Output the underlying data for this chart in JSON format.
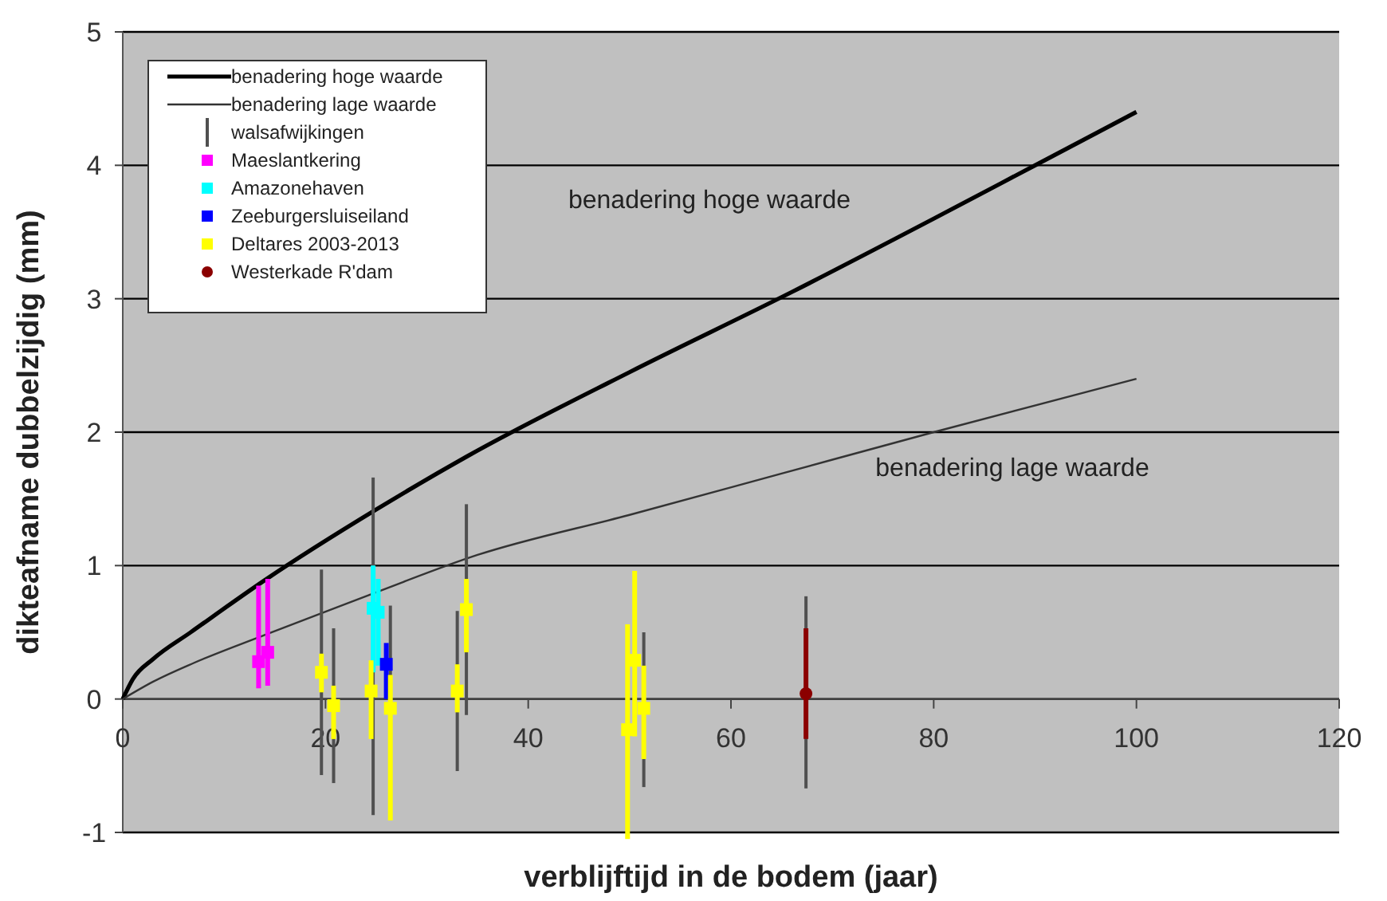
{
  "chart_data": {
    "type": "scatter",
    "xlabel": "verblijftijd in de bodem (jaar)",
    "ylabel": "dikteafname dubbelzijdig (mm)",
    "xlim": [
      0,
      120
    ],
    "xticks": [
      0,
      20,
      40,
      60,
      80,
      100,
      120
    ],
    "ylim": [
      -1,
      5
    ],
    "yticks": [
      -1,
      0,
      1,
      2,
      3,
      4,
      5
    ],
    "grid": "y",
    "legend": "top left",
    "annotations": [
      "benadering hoge waarde",
      "benadering lage waarde"
    ],
    "series": [
      {
        "name": "benadering hoge waarde",
        "type": "line",
        "color": "#000000",
        "x": [
          0,
          1,
          3,
          6.7,
          14,
          25,
          34,
          50,
          66,
          80,
          90,
          100
        ],
        "values": [
          0,
          0.15,
          0.3,
          0.5,
          0.89,
          1.42,
          1.82,
          2.45,
          3.05,
          3.6,
          4.0,
          4.4
        ]
      },
      {
        "name": "benadering lage waarde",
        "type": "line",
        "color": "#333333",
        "x": [
          0,
          3,
          7,
          14,
          25,
          35,
          50,
          65,
          80,
          100
        ],
        "values": [
          0,
          0.13,
          0.27,
          0.48,
          0.8,
          1.08,
          1.38,
          1.69,
          2.0,
          2.4
        ]
      },
      {
        "name": "walsafwijkingen",
        "type": "bar",
        "color": "#505050",
        "x": [
          19.6,
          20.8,
          24.7,
          26.4,
          33,
          33.9,
          51.4,
          67.4
        ],
        "base": [
          -0.57,
          -0.63,
          -0.87,
          -0.4,
          -0.54,
          -0.12,
          -0.66,
          -0.67
        ],
        "values": [
          1.54,
          1.16,
          2.53,
          1.1,
          1.2,
          1.58,
          1.16,
          1.44
        ]
      },
      {
        "name": "Maeslantkering",
        "color": "#ff00ff",
        "marker": "square",
        "x": [
          13.4,
          14.3
        ],
        "values": [
          0.28,
          0.35
        ],
        "errors": [
          [
            0.08,
            0.85
          ],
          [
            0.1,
            0.9
          ]
        ]
      },
      {
        "name": "Amazonehaven",
        "color": "#00ffff",
        "marker": "square",
        "x": [
          24.7,
          25.2
        ],
        "values": [
          0.68,
          0.65
        ],
        "errors": [
          [
            0.2,
            1.0
          ],
          [
            0.25,
            0.9
          ]
        ]
      },
      {
        "name": "Zeeburgersluiseiland",
        "color": "#0000ff",
        "marker": "square",
        "x": [
          26
        ],
        "values": [
          0.26
        ],
        "errors": [
          [
            0.0,
            0.42
          ]
        ]
      },
      {
        "name": "Deltares 2003-2013",
        "color": "#ffff00",
        "marker": "square",
        "x": [
          19.6,
          20.8,
          24.5,
          26.4,
          33,
          33.9,
          49.8,
          50.5,
          51.4
        ],
        "values": [
          0.2,
          -0.05,
          0.06,
          -0.07,
          0.06,
          0.67,
          -0.23,
          0.29,
          -0.07
        ],
        "errors": [
          [
            0.05,
            0.34
          ],
          [
            -0.3,
            0.1
          ],
          [
            -0.3,
            0.29
          ],
          [
            -0.91,
            0.18
          ],
          [
            -0.1,
            0.26
          ],
          [
            0.35,
            0.9
          ],
          [
            -1.05,
            0.56
          ],
          [
            -0.28,
            0.96
          ],
          [
            -0.45,
            0.25
          ]
        ]
      },
      {
        "name": "Westerkade R'dam",
        "color": "#8b0000",
        "marker": "circle",
        "x": [
          67.4
        ],
        "values": [
          0.04
        ],
        "errors": [
          [
            -0.3,
            0.53
          ]
        ]
      }
    ]
  }
}
